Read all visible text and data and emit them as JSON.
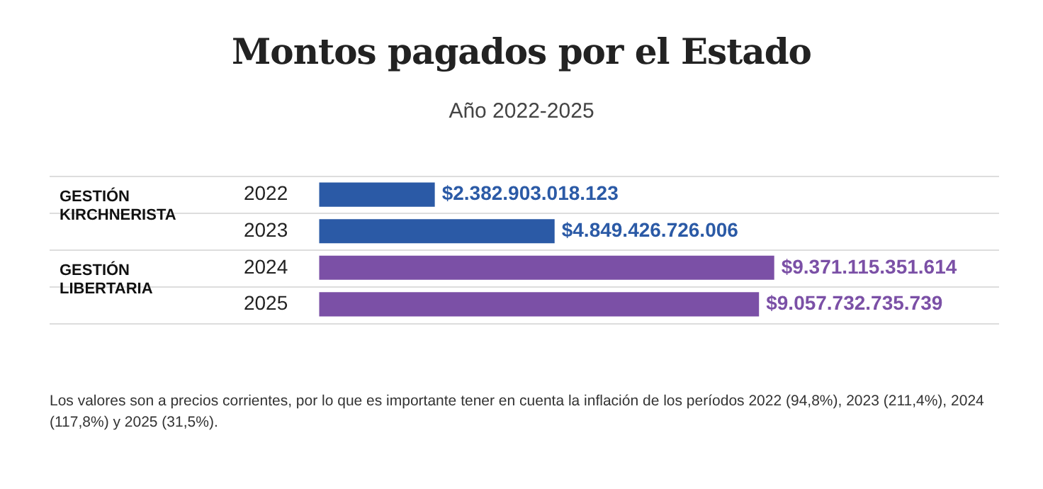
{
  "chart_data": {
    "type": "bar",
    "orientation": "horizontal",
    "title": "Montos pagados por el Estado",
    "subtitle": "Año 2022-2025",
    "categories": [
      "2022",
      "2023",
      "2024",
      "2025"
    ],
    "values": [
      2382903018123,
      4849426726006,
      9371115351614,
      9057732735739
    ],
    "colors": [
      "#2b5aa6",
      "#2b5aa6",
      "#7b50a6",
      "#7b50a6"
    ],
    "data_labels": true,
    "value_labels": [
      "$2.382.903.018.123",
      "$4.849.426.726.006",
      "$9.371.115.351.614",
      "$9.057.732.735.739"
    ],
    "grid": "y",
    "legend": false,
    "annotations": [
      "GESTIÓN KIRCHNERISTA",
      "GESTIÓN LIBERTARIA",
      "Los valores son a precios corrientes, por lo que es importante tener en cuenta la inflación de los períodos 2022 (94,8%), 2023 (211,4%), 2024 (117,8%) y 2025 (31,5%)."
    ]
  }
}
